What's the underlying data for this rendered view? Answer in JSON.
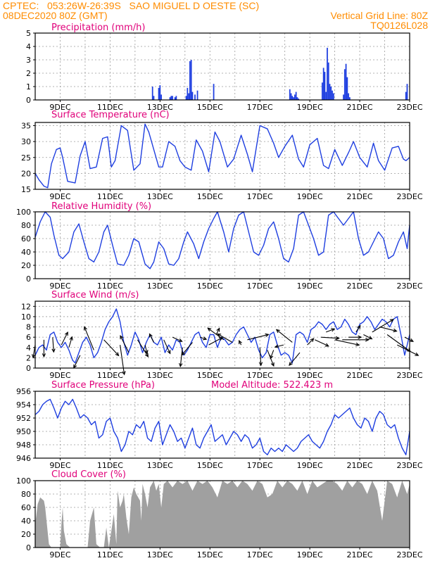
{
  "header": {
    "line1": "CPTEC:   053:26W-26:39S   SAO MIGUEL D OESTE (SC)",
    "line2_left": "08DEC2020 80Z (GMT)",
    "line2_right": "Vertical Grid Line: 80Z",
    "line3_right": "TQ0126L028"
  },
  "colors": {
    "header": "#ff8c00",
    "title": "#e0007a",
    "series": "#1f3fe0",
    "cloud": "#a0a0a0",
    "arrow": "#000000",
    "grid": "#9a9a9a"
  },
  "time_axis": {
    "start": "08DEC2020 00Z",
    "end": "23DEC2020 00Z",
    "vertical_grid_hour": "80Z",
    "tick_labels": [
      "9DEC",
      "11DEC",
      "13DEC",
      "15DEC",
      "17DEC",
      "19DEC",
      "21DEC",
      "23DEC"
    ]
  },
  "chart_data": [
    {
      "id": "precip",
      "type": "bar",
      "title": "Precipitation (mm/h)",
      "ylim": [
        0,
        5
      ],
      "yticks": [
        0,
        1,
        2,
        3,
        4,
        5
      ],
      "grid": true,
      "x_unit": "days since 08DEC2020 00Z",
      "x": [
        4.7,
        4.75,
        4.95,
        5.0,
        5.05,
        5.4,
        5.45,
        5.5,
        5.6,
        5.65,
        6.05,
        6.1,
        6.15,
        6.2,
        6.25,
        6.3,
        6.4,
        6.5,
        7.15,
        10.2,
        10.25,
        10.3,
        10.35,
        10.4,
        10.45,
        10.5,
        10.55,
        11.5,
        11.55,
        11.6,
        11.65,
        11.7,
        11.75,
        11.8,
        11.85,
        11.9,
        11.95,
        12.35,
        12.4,
        12.45,
        12.5,
        12.55,
        12.6,
        14.85,
        14.9
      ],
      "values": [
        1.0,
        0.3,
        0.9,
        1.1,
        0.4,
        0.2,
        0.3,
        0.3,
        0.2,
        0.3,
        0.3,
        0.9,
        0.5,
        2.9,
        3.0,
        0.6,
        0.4,
        0.7,
        1.2,
        0.8,
        0.5,
        0.3,
        0.2,
        0.4,
        0.6,
        0.2,
        0.1,
        1.3,
        2.4,
        2.1,
        0.6,
        3.9,
        2.8,
        1.2,
        1.0,
        0.7,
        0.5,
        0.4,
        2.3,
        2.7,
        1.7,
        0.5,
        0.2,
        0.6,
        1.2
      ]
    },
    {
      "id": "temp",
      "type": "line",
      "title": "Surface Temperature (nC)",
      "ylim": [
        15,
        36
      ],
      "yticks": [
        15,
        20,
        25,
        30,
        35
      ],
      "grid": true,
      "x_unit": "days since 08DEC2020 00Z",
      "x": [
        0.0,
        0.15,
        0.35,
        0.5,
        0.65,
        0.85,
        1.0,
        1.1,
        1.3,
        1.6,
        1.8,
        2.0,
        2.2,
        2.45,
        2.7,
        2.9,
        3.05,
        3.2,
        3.45,
        3.7,
        3.95,
        4.2,
        4.4,
        4.55,
        4.75,
        4.95,
        5.1,
        5.35,
        5.6,
        5.8,
        6.0,
        6.25,
        6.45,
        6.7,
        6.95,
        7.2,
        7.4,
        7.7,
        7.95,
        8.25,
        8.5,
        8.7,
        9.0,
        9.3,
        9.55,
        9.75,
        10.0,
        10.3,
        10.55,
        10.75,
        11.0,
        11.3,
        11.55,
        11.75,
        12.0,
        12.3,
        12.55,
        12.75,
        13.0,
        13.3,
        13.55,
        13.75,
        14.0,
        14.3,
        14.55,
        14.75,
        14.85,
        15.0
      ],
      "values": [
        20.0,
        18.0,
        16.0,
        15.5,
        23.0,
        27.5,
        28.0,
        25.0,
        17.5,
        17.0,
        25.5,
        30.0,
        21.5,
        22.0,
        31.0,
        31.5,
        22.0,
        24.0,
        35.0,
        33.5,
        21.0,
        23.0,
        35.5,
        33.0,
        27.5,
        22.0,
        22.0,
        30.0,
        28.5,
        24.0,
        22.0,
        21.0,
        30.5,
        27.0,
        20.5,
        33.0,
        30.0,
        22.0,
        24.5,
        32.0,
        26.0,
        20.5,
        35.0,
        34.0,
        29.5,
        25.0,
        28.5,
        32.0,
        24.5,
        22.0,
        29.0,
        31.0,
        22.5,
        21.5,
        27.5,
        22.5,
        26.5,
        30.0,
        25.0,
        22.0,
        29.5,
        24.0,
        21.0,
        28.0,
        28.5,
        24.5,
        24.0,
        25.0
      ]
    },
    {
      "id": "rh",
      "type": "line",
      "title": "Relative Humidity (%)",
      "ylim": [
        0,
        100
      ],
      "yticks": [
        0,
        20,
        40,
        60,
        80,
        100
      ],
      "grid": true,
      "x_unit": "days since 08DEC2020 00Z",
      "x": [
        0.0,
        0.2,
        0.4,
        0.6,
        0.75,
        0.95,
        1.1,
        1.35,
        1.55,
        1.75,
        1.95,
        2.15,
        2.35,
        2.55,
        2.75,
        2.9,
        3.1,
        3.3,
        3.55,
        3.75,
        3.95,
        4.15,
        4.4,
        4.6,
        4.75,
        4.95,
        5.15,
        5.35,
        5.55,
        5.75,
        5.95,
        6.1,
        6.35,
        6.55,
        6.75,
        6.95,
        7.15,
        7.3,
        7.55,
        7.75,
        7.95,
        8.15,
        8.35,
        8.55,
        8.75,
        8.95,
        9.15,
        9.35,
        9.55,
        9.75,
        9.95,
        10.15,
        10.35,
        10.55,
        10.75,
        10.95,
        11.15,
        11.35,
        11.55,
        11.75,
        11.95,
        12.15,
        12.35,
        12.55,
        12.75,
        12.95,
        13.15,
        13.35,
        13.55,
        13.75,
        13.95,
        14.15,
        14.35,
        14.55,
        14.75,
        14.9,
        15.0
      ],
      "values": [
        62,
        85,
        100,
        92,
        65,
        35,
        30,
        40,
        70,
        82,
        55,
        30,
        25,
        40,
        70,
        80,
        50,
        22,
        20,
        35,
        60,
        55,
        22,
        15,
        25,
        55,
        45,
        22,
        20,
        30,
        55,
        70,
        52,
        30,
        55,
        75,
        90,
        100,
        70,
        40,
        75,
        95,
        100,
        70,
        40,
        35,
        50,
        75,
        85,
        60,
        30,
        25,
        45,
        95,
        100,
        80,
        60,
        35,
        40,
        95,
        100,
        90,
        80,
        90,
        100,
        60,
        35,
        40,
        55,
        70,
        60,
        30,
        35,
        55,
        70,
        45,
        80
      ]
    },
    {
      "id": "wind",
      "type": "line",
      "title": "Surface Wind (m/s)",
      "ylim": [
        0,
        13
      ],
      "yticks": [
        0,
        2,
        4,
        6,
        8,
        10,
        12
      ],
      "grid": true,
      "x_unit": "days since 08DEC2020 00Z",
      "x": [
        0.0,
        0.15,
        0.3,
        0.45,
        0.6,
        0.75,
        0.9,
        1.05,
        1.2,
        1.35,
        1.5,
        1.6,
        1.75,
        1.9,
        2.05,
        2.2,
        2.35,
        2.5,
        2.65,
        2.8,
        2.95,
        3.1,
        3.25,
        3.4,
        3.55,
        3.7,
        3.85,
        4.0,
        4.15,
        4.3,
        4.45,
        4.6,
        4.75,
        4.9,
        5.05,
        5.2,
        5.35,
        5.5,
        5.65,
        5.8,
        5.95,
        6.1,
        6.25,
        6.4,
        6.55,
        6.7,
        6.85,
        7.0,
        7.15,
        7.3,
        7.45,
        7.6,
        7.75,
        7.9,
        8.05,
        8.2,
        8.35,
        8.5,
        8.65,
        8.8,
        8.95,
        9.1,
        9.25,
        9.4,
        9.55,
        9.7,
        9.85,
        10.0,
        10.15,
        10.3,
        10.45,
        10.6,
        10.75,
        10.9,
        11.05,
        11.2,
        11.35,
        11.5,
        11.65,
        11.8,
        11.95,
        12.1,
        12.25,
        12.4,
        12.55,
        12.7,
        12.85,
        13.0,
        13.15,
        13.3,
        13.45,
        13.6,
        13.75,
        13.9,
        14.05,
        14.2,
        14.35,
        14.5,
        14.65,
        14.8,
        15.0
      ],
      "values": [
        2.5,
        4.0,
        4.5,
        3.5,
        6.5,
        7.0,
        5.0,
        4.0,
        5.0,
        3.5,
        1.5,
        1.0,
        3.0,
        5.0,
        6.0,
        4.5,
        2.0,
        3.0,
        5.0,
        7.5,
        9.0,
        10.0,
        11.5,
        9.0,
        5.0,
        2.5,
        4.5,
        7.0,
        5.5,
        3.0,
        5.0,
        6.5,
        5.0,
        4.5,
        6.0,
        3.0,
        4.5,
        3.5,
        5.5,
        5.0,
        2.5,
        3.5,
        5.0,
        6.5,
        7.0,
        5.0,
        4.0,
        6.5,
        6.5,
        4.0,
        6.0,
        5.5,
        4.5,
        5.0,
        6.5,
        7.5,
        8.0,
        6.5,
        5.0,
        6.0,
        3.5,
        2.0,
        3.0,
        6.5,
        7.0,
        4.5,
        2.5,
        3.0,
        2.5,
        1.0,
        6.5,
        7.0,
        6.5,
        5.0,
        7.5,
        8.0,
        9.0,
        8.5,
        7.5,
        8.5,
        9.0,
        7.5,
        8.0,
        9.5,
        8.5,
        7.0,
        6.5,
        8.5,
        9.0,
        10.0,
        9.0,
        7.5,
        8.5,
        9.5,
        9.0,
        8.0,
        9.5,
        10.0,
        6.5,
        2.5,
        6.5
      ]
    },
    {
      "id": "pressure",
      "type": "line",
      "title": "Surface Pressure (hPa)",
      "annotation": "Model Altitude: 522.423 m",
      "ylim": [
        946,
        956
      ],
      "yticks": [
        946,
        948,
        950,
        952,
        954,
        956
      ],
      "grid": true,
      "x_unit": "days since 08DEC2020 00Z",
      "x": [
        0.0,
        0.15,
        0.3,
        0.45,
        0.6,
        0.75,
        0.9,
        1.05,
        1.2,
        1.35,
        1.5,
        1.65,
        1.8,
        1.95,
        2.1,
        2.25,
        2.4,
        2.55,
        2.7,
        2.85,
        3.0,
        3.15,
        3.3,
        3.45,
        3.6,
        3.75,
        3.9,
        4.05,
        4.2,
        4.35,
        4.5,
        4.65,
        4.8,
        4.95,
        5.1,
        5.25,
        5.4,
        5.55,
        5.7,
        5.85,
        6.0,
        6.15,
        6.3,
        6.45,
        6.6,
        6.75,
        6.9,
        7.05,
        7.2,
        7.35,
        7.5,
        7.65,
        7.8,
        7.95,
        8.1,
        8.25,
        8.4,
        8.55,
        8.7,
        8.85,
        9.0,
        9.15,
        9.3,
        9.45,
        9.6,
        9.75,
        9.9,
        10.05,
        10.2,
        10.35,
        10.5,
        10.65,
        10.8,
        10.95,
        11.1,
        11.25,
        11.4,
        11.55,
        11.7,
        11.85,
        12.0,
        12.15,
        12.3,
        12.45,
        12.6,
        12.75,
        12.9,
        13.05,
        13.2,
        13.35,
        13.5,
        13.65,
        13.8,
        13.95,
        14.1,
        14.25,
        14.4,
        14.55,
        14.7,
        14.85,
        15.0
      ],
      "values": [
        952.5,
        953.0,
        954.0,
        954.5,
        954.8,
        953.5,
        952.0,
        953.5,
        954.5,
        954.0,
        954.8,
        953.5,
        952.0,
        952.5,
        952.0,
        951.0,
        951.5,
        949.0,
        949.5,
        951.5,
        952.0,
        950.0,
        949.0,
        947.0,
        948.0,
        950.0,
        949.5,
        951.0,
        950.5,
        951.5,
        949.0,
        948.5,
        950.5,
        951.5,
        948.0,
        949.5,
        951.0,
        950.0,
        948.5,
        949.0,
        947.5,
        949.0,
        950.5,
        948.0,
        947.5,
        949.0,
        950.0,
        951.0,
        948.5,
        949.0,
        949.5,
        948.0,
        949.0,
        950.0,
        949.5,
        948.5,
        949.5,
        949.0,
        947.5,
        948.0,
        949.0,
        947.0,
        946.5,
        947.5,
        947.0,
        947.5,
        947.0,
        948.0,
        947.5,
        947.0,
        947.5,
        948.5,
        949.0,
        949.5,
        948.5,
        948.0,
        947.5,
        948.5,
        950.0,
        951.0,
        952.5,
        952.0,
        952.5,
        953.0,
        953.5,
        952.0,
        951.0,
        950.5,
        952.0,
        951.5,
        950.0,
        952.0,
        953.0,
        952.5,
        951.0,
        950.5,
        951.0,
        949.0,
        947.5,
        946.5,
        950.0
      ]
    },
    {
      "id": "cloud",
      "type": "area",
      "title": "Cloud Cover (%)",
      "ylim": [
        0,
        100
      ],
      "yticks": [
        0,
        20,
        40,
        60,
        80,
        100
      ],
      "grid": true,
      "x_unit": "days since 08DEC2020 00Z",
      "x": [
        0.0,
        0.1,
        0.2,
        0.35,
        0.4,
        0.55,
        0.65,
        1.0,
        1.05,
        1.1,
        1.15,
        1.25,
        1.4,
        1.5,
        1.65,
        2.0,
        2.1,
        2.2,
        2.35,
        2.45,
        2.6,
        2.75,
        2.85,
        2.95,
        3.05,
        3.15,
        3.25,
        3.3,
        3.4,
        3.5,
        3.55,
        3.65,
        3.75,
        3.85,
        3.95,
        4.05,
        4.2,
        4.25,
        4.3,
        4.4,
        4.5,
        4.6,
        4.75,
        4.85,
        4.95,
        5.05,
        5.15,
        5.3,
        5.5,
        5.7,
        5.9,
        6.1,
        6.3,
        6.5,
        6.7,
        6.9,
        7.1,
        7.3,
        7.5,
        7.7,
        7.9,
        8.1,
        8.3,
        8.5,
        8.7,
        8.9,
        9.1,
        9.3,
        9.5,
        9.7,
        9.9,
        10.1,
        10.3,
        10.5,
        10.7,
        10.9,
        11.1,
        11.3,
        11.5,
        11.7,
        11.9,
        12.1,
        12.3,
        12.5,
        12.7,
        12.9,
        13.1,
        13.3,
        13.5,
        13.7,
        13.9,
        14.1,
        14.3,
        14.5,
        14.7,
        14.9,
        15.0
      ],
      "values": [
        35,
        65,
        75,
        70,
        60,
        5,
        0,
        0,
        35,
        60,
        25,
        5,
        0,
        0,
        0,
        0,
        0,
        40,
        60,
        5,
        0,
        0,
        30,
        0,
        25,
        50,
        5,
        85,
        60,
        70,
        80,
        45,
        20,
        75,
        90,
        80,
        70,
        40,
        95,
        80,
        60,
        90,
        100,
        85,
        95,
        60,
        95,
        100,
        90,
        100,
        95,
        100,
        85,
        100,
        95,
        100,
        90,
        75,
        100,
        95,
        100,
        90,
        100,
        95,
        85,
        100,
        95,
        75,
        80,
        100,
        90,
        100,
        95,
        85,
        100,
        80,
        100,
        90,
        95,
        100,
        100,
        95,
        85,
        100,
        90,
        100,
        95,
        80,
        100,
        85,
        40,
        100,
        95,
        75,
        100,
        80,
        95
      ]
    },
    {
      "id": "wind_vectors",
      "type": "scatter",
      "title": "",
      "x_unit": "days since 08DEC2020 00Z",
      "y_unit": "m/s",
      "x": [
        0.0,
        0.35,
        0.7,
        1.05,
        1.35,
        1.8,
        2.35,
        2.75,
        3.4,
        3.75,
        4.1,
        4.4,
        4.75,
        5.15,
        5.5,
        5.9,
        6.3,
        6.6,
        6.95,
        7.25,
        7.55,
        7.9,
        8.25,
        8.5,
        9.0,
        9.3,
        9.55,
        9.95,
        10.3,
        10.6,
        10.9,
        11.2,
        11.45,
        11.65,
        12.0,
        12.3,
        12.55,
        12.85,
        13.15,
        13.5,
        13.8,
        14.1,
        14.5,
        14.8
      ],
      "values": [
        4.5,
        5.5,
        6.0,
        4.5,
        4.0,
        2.5,
        3.5,
        5.5,
        4.5,
        3.0,
        5.5,
        4.5,
        5.0,
        5.5,
        6.0,
        4.0,
        5.0,
        6.0,
        4.5,
        6.5,
        5.5,
        5.0,
        4.5,
        5.5,
        4.0,
        3.5,
        3.5,
        4.5,
        5.0,
        3.0,
        4.5,
        5.5,
        6.0,
        7.0,
        5.5,
        5.5,
        6.0,
        7.0,
        6.5,
        7.0,
        8.0,
        6.5,
        4.5,
        6.0
      ],
      "u": [
        -0.2,
        0.0,
        0.1,
        0.6,
        0.3,
        -0.6,
        -0.9,
        1.4,
        0.4,
        -0.8,
        1.0,
        0.2,
        -0.4,
        0.6,
        0.9,
        -0.2,
        -1.0,
        0.6,
        1.3,
        0.3,
        -1.5,
        -1.4,
        -0.2,
        2.0,
        0.1,
        0.6,
        -0.3,
        -0.8,
        -1.5,
        -1.0,
        0.6,
        1.3,
        1.7,
        0.8,
        2.3,
        2.5,
        1.2,
        0.4,
        0.8,
        2.0,
        1.6,
        2.2,
        2.0,
        0.8
      ],
      "v": [
        -1.2,
        -1.6,
        -1.4,
        1.2,
        1.0,
        -1.2,
        2.2,
        -1.5,
        -2.8,
        1.6,
        -1.6,
        -0.8,
        0.8,
        -1.3,
        -0.4,
        -1.8,
        -1.2,
        -0.2,
        0.7,
        0.6,
        1.1,
        0.8,
        0.4,
        0.5,
        -1.7,
        -1.5,
        -0.8,
        -0.2,
        1.2,
        -1.2,
        0.6,
        -0.6,
        -0.1,
        0.3,
        -0.5,
        0.0,
        0.0,
        0.6,
        -0.4,
        1.2,
        -0.4,
        -1.6,
        -1.0,
        -0.4
      ]
    }
  ]
}
